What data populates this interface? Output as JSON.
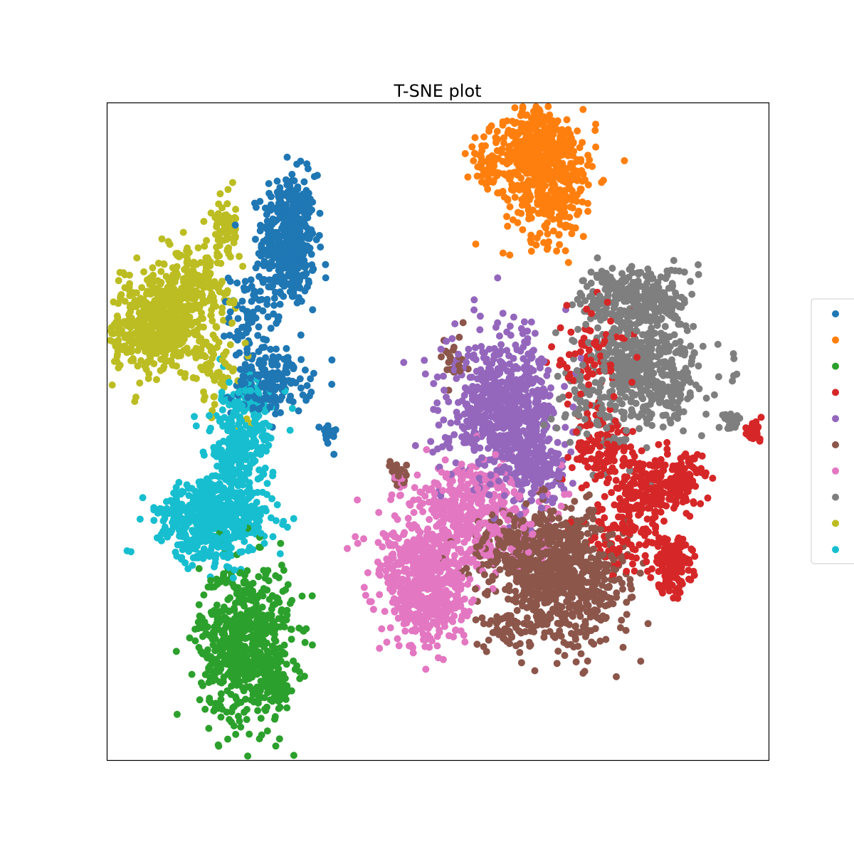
{
  "chart_data": {
    "type": "scatter",
    "title": "T-SNE plot",
    "xlabel": "",
    "ylabel": "",
    "xlim": [
      -100,
      100
    ],
    "ylim": [
      -100,
      100
    ],
    "grid": false,
    "axis_ticks": false,
    "legend_placement": "center-right",
    "series": [
      {
        "color": "#1f77b4",
        "clusters": [
          {
            "cx": -45,
            "cy": 58,
            "sx": 4,
            "sy": 10,
            "n": 450
          },
          {
            "cx": -50,
            "cy": 15,
            "sx": 6,
            "sy": 5,
            "n": 160
          },
          {
            "cx": -57,
            "cy": 35,
            "sx": 3,
            "sy": 7,
            "n": 70
          },
          {
            "cx": -33,
            "cy": -1,
            "sx": 1.2,
            "sy": 2,
            "n": 20
          }
        ]
      },
      {
        "color": "#ff7f0e",
        "clusters": [
          {
            "cx": 29,
            "cy": 86,
            "sx": 5,
            "sy": 7,
            "n": 220
          },
          {
            "cx": 34,
            "cy": 78,
            "sx": 7,
            "sy": 10,
            "n": 420
          },
          {
            "cx": 15,
            "cy": 82,
            "sx": 3,
            "sy": 4,
            "n": 50
          }
        ]
      },
      {
        "color": "#2ca02c",
        "clusters": [
          {
            "cx": -58,
            "cy": -64,
            "sx": 7,
            "sy": 12,
            "n": 650
          },
          {
            "cx": -50,
            "cy": -77,
            "sx": 3,
            "sy": 3,
            "n": 90
          }
        ]
      },
      {
        "color": "#d62728",
        "clusters": [
          {
            "cx": 51,
            "cy": -6,
            "sx": 5,
            "sy": 5,
            "n": 120
          },
          {
            "cx": 64,
            "cy": -18,
            "sx": 4,
            "sy": 5,
            "n": 130
          },
          {
            "cx": 74,
            "cy": -15,
            "sx": 3,
            "sy": 4,
            "n": 110
          },
          {
            "cx": 71,
            "cy": -41,
            "sx": 3,
            "sy": 4,
            "n": 150
          },
          {
            "cx": 57,
            "cy": -30,
            "sx": 8,
            "sy": 8,
            "n": 120
          },
          {
            "cx": 46,
            "cy": 21,
            "sx": 6,
            "sy": 8,
            "n": 80
          },
          {
            "cx": 95,
            "cy": 0,
            "sx": 1.5,
            "sy": 1.5,
            "n": 25
          }
        ]
      },
      {
        "color": "#9467bd",
        "clusters": [
          {
            "cx": 20,
            "cy": 5,
            "sx": 8,
            "sy": 10,
            "n": 650
          },
          {
            "cx": 30,
            "cy": -12,
            "sx": 4,
            "sy": 5,
            "n": 150
          },
          {
            "cx": 20,
            "cy": 25,
            "sx": 12,
            "sy": 8,
            "n": 40
          }
        ]
      },
      {
        "color": "#8c564b",
        "clusters": [
          {
            "cx": 38,
            "cy": -45,
            "sx": 10,
            "sy": 10,
            "n": 700
          },
          {
            "cx": 25,
            "cy": -35,
            "sx": 8,
            "sy": 5,
            "n": 200
          },
          {
            "cx": 20,
            "cy": -60,
            "sx": 3,
            "sy": 3,
            "n": 40
          },
          {
            "cx": -12,
            "cy": -13,
            "sx": 1.5,
            "sy": 2,
            "n": 25
          },
          {
            "cx": 5,
            "cy": 22,
            "sx": 2,
            "sy": 4,
            "n": 20
          }
        ]
      },
      {
        "color": "#e377c2",
        "clusters": [
          {
            "cx": -3,
            "cy": -50,
            "sx": 6,
            "sy": 8,
            "n": 420
          },
          {
            "cx": 10,
            "cy": -25,
            "sx": 10,
            "sy": 8,
            "n": 350
          },
          {
            "cx": -5,
            "cy": -38,
            "sx": 8,
            "sy": 5,
            "n": 180
          },
          {
            "cx": 5,
            "cy": -20,
            "sx": 10,
            "sy": 5,
            "n": 80
          }
        ]
      },
      {
        "color": "#7f7f7f",
        "clusters": [
          {
            "cx": 60,
            "cy": 40,
            "sx": 8,
            "sy": 5,
            "n": 300
          },
          {
            "cx": 64,
            "cy": 18,
            "sx": 8,
            "sy": 8,
            "n": 420
          },
          {
            "cx": 48,
            "cy": 10,
            "sx": 6,
            "sy": 9,
            "n": 120
          },
          {
            "cx": 89,
            "cy": 3,
            "sx": 1.5,
            "sy": 1.5,
            "n": 20
          }
        ]
      },
      {
        "color": "#bcbd22",
        "clusters": [
          {
            "cx": -85,
            "cy": 32,
            "sx": 7,
            "sy": 7,
            "n": 500
          },
          {
            "cx": -74,
            "cy": 45,
            "sx": 6,
            "sy": 6,
            "n": 200
          },
          {
            "cx": -64,
            "cy": 62,
            "sx": 2.5,
            "sy": 5,
            "n": 70
          },
          {
            "cx": -66,
            "cy": 20,
            "sx": 4,
            "sy": 7,
            "n": 60
          }
        ]
      },
      {
        "color": "#17becf",
        "clusters": [
          {
            "cx": -68,
            "cy": -27,
            "sx": 8,
            "sy": 6,
            "n": 600
          },
          {
            "cx": -60,
            "cy": -5,
            "sx": 5,
            "sy": 7,
            "n": 250
          },
          {
            "cx": -57,
            "cy": 10,
            "sx": 3,
            "sy": 4,
            "n": 60
          }
        ]
      }
    ]
  }
}
